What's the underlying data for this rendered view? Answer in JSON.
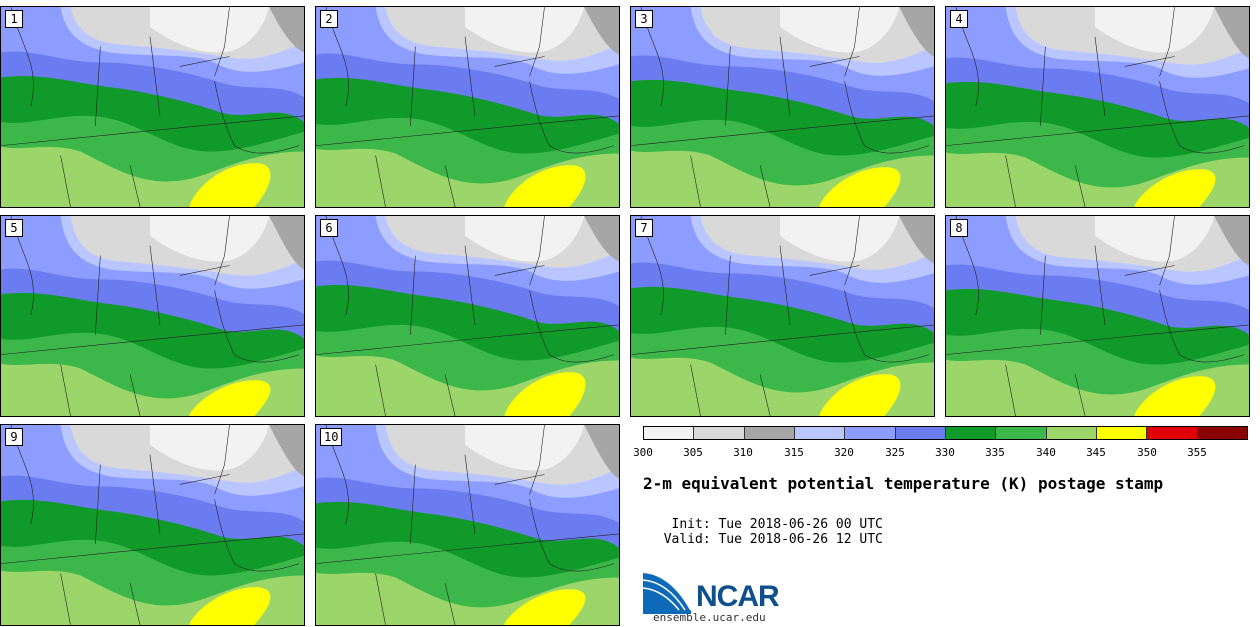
{
  "panels": [
    {
      "label": "1"
    },
    {
      "label": "2"
    },
    {
      "label": "3"
    },
    {
      "label": "4"
    },
    {
      "label": "5"
    },
    {
      "label": "6"
    },
    {
      "label": "7"
    },
    {
      "label": "8"
    },
    {
      "label": "9"
    },
    {
      "label": "10"
    }
  ],
  "colorbar": {
    "colors": [
      "#f2f2f2",
      "#d9d9d9",
      "#a6a6a6",
      "#b9c6ff",
      "#8c9cff",
      "#6b7cf0",
      "#0f9a2a",
      "#3cb84a",
      "#9cd66b",
      "#ffff00",
      "#e00000",
      "#8b0000"
    ],
    "ticks": [
      "300",
      "305",
      "310",
      "315",
      "320",
      "325",
      "330",
      "335",
      "340",
      "345",
      "350",
      "355"
    ]
  },
  "title": "2-m equivalent potential temperature (K) postage stamp",
  "init_label": "Init:",
  "init_value": "Tue 2018-06-26 00 UTC",
  "valid_label": "Valid:",
  "valid_value": "Tue 2018-06-26 12 UTC",
  "logo_text": "NCAR",
  "url": "ensemble.ucar.edu"
}
